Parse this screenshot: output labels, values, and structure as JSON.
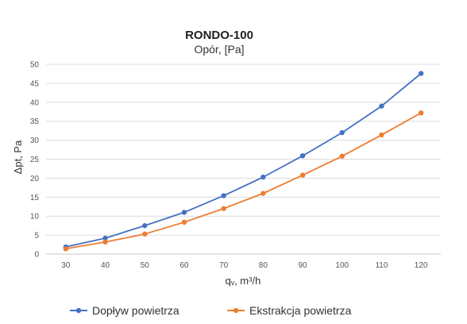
{
  "chart_data": {
    "type": "line",
    "title": "RONDO-100",
    "subtitle": "Opór, [Pa]",
    "xlabel": "qᵥ, m³/h",
    "ylabel": "Δpt, Pa",
    "x": [
      30,
      40,
      50,
      60,
      70,
      80,
      90,
      100,
      110,
      120
    ],
    "xlim": [
      25,
      125
    ],
    "ylim": [
      0,
      50
    ],
    "yticks": [
      0,
      5,
      10,
      15,
      20,
      25,
      30,
      35,
      40,
      45,
      50
    ],
    "grid": true,
    "legend_position": "bottom",
    "series": [
      {
        "name": "Dopływ powietrza",
        "color": "#4472C4",
        "values": [
          1.9,
          4.2,
          7.5,
          11.0,
          15.4,
          20.3,
          25.9,
          32.0,
          39.0,
          47.6
        ]
      },
      {
        "name": "Ekstrakcja powietrza",
        "color": "#ED7D31",
        "values": [
          1.4,
          3.2,
          5.3,
          8.4,
          12.0,
          16.0,
          20.8,
          25.8,
          31.4,
          37.2
        ]
      }
    ]
  }
}
